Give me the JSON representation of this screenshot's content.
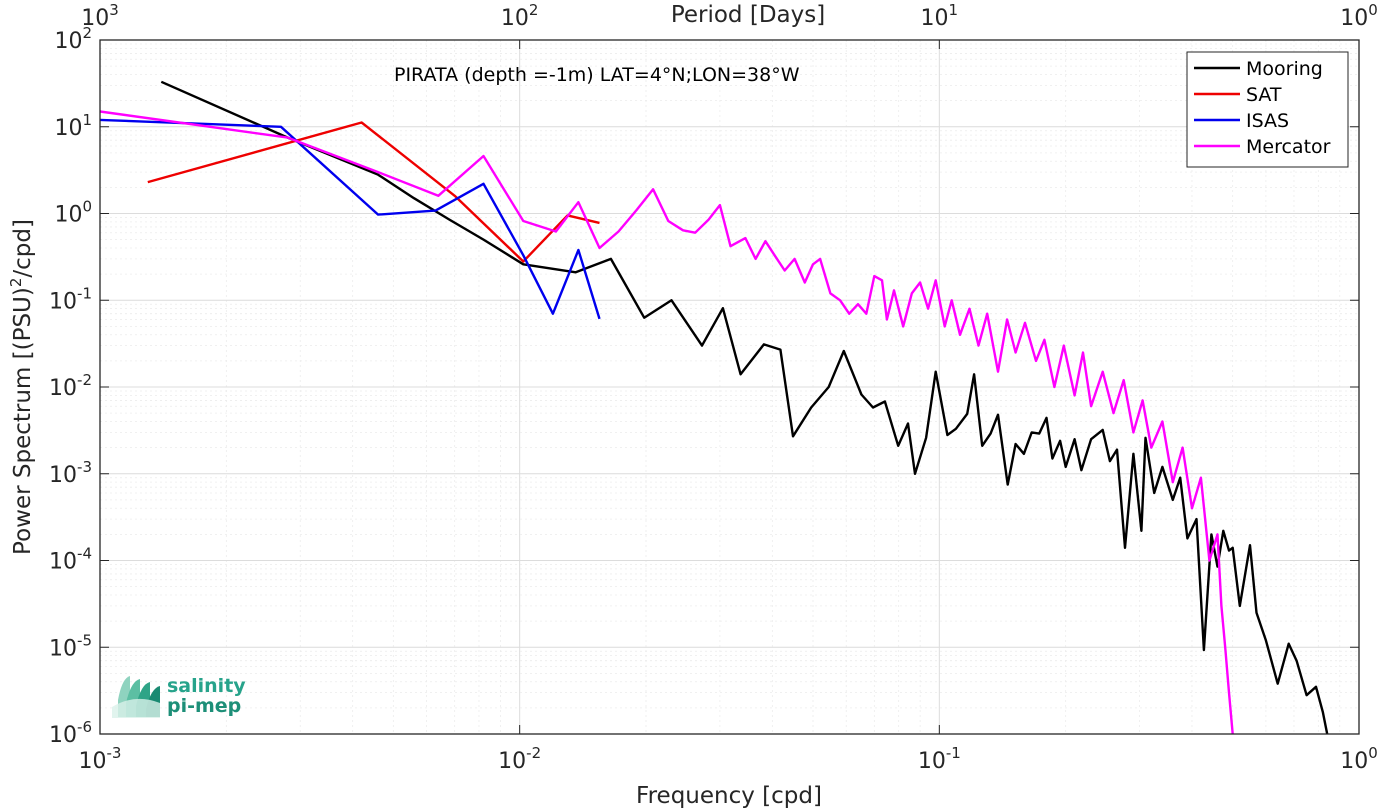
{
  "chart_data": {
    "type": "line",
    "title": "",
    "annotation": "PIRATA (depth =-1m) LAT=4°N;LON=38°W",
    "xlabel": "Frequency [cpd]",
    "ylabel": "Power Spectrum [(PSU)²/cpd]",
    "top_xlabel": "Period [Days]",
    "x_scale": "log",
    "y_scale": "log",
    "xlim": [
      0.001,
      1
    ],
    "ylim": [
      1e-06,
      100
    ],
    "grid": true,
    "legend_position": "top-right",
    "x_ticks": [
      "10^-3",
      "10^-2",
      "10^-1",
      "10^0"
    ],
    "top_ticks": [
      "10^3",
      "10^2",
      "10^1",
      "10^0"
    ],
    "y_ticks": [
      "10^-6",
      "10^-5",
      "10^-4",
      "10^-3",
      "10^-2",
      "10^-1",
      "10^0",
      "10^1",
      "10^2"
    ],
    "series": [
      {
        "name": "Mooring",
        "color": "#000000",
        "points": [
          [
            0.0014,
            33
          ],
          [
            0.0028,
            7.5
          ],
          [
            0.0046,
            2.8
          ],
          [
            0.0056,
            1.5
          ],
          [
            0.0068,
            0.85
          ],
          [
            0.0082,
            0.5
          ],
          [
            0.0102,
            0.26
          ],
          [
            0.0136,
            0.21
          ],
          [
            0.0165,
            0.3
          ],
          [
            0.0198,
            0.063
          ],
          [
            0.023,
            0.1
          ],
          [
            0.0272,
            0.03
          ],
          [
            0.0305,
            0.081
          ],
          [
            0.0336,
            0.014
          ],
          [
            0.0382,
            0.031
          ],
          [
            0.0418,
            0.027
          ],
          [
            0.0448,
            0.0027
          ],
          [
            0.0495,
            0.0058
          ],
          [
            0.0545,
            0.01
          ],
          [
            0.0592,
            0.026
          ],
          [
            0.0652,
            0.0082
          ],
          [
            0.0695,
            0.0058
          ],
          [
            0.0742,
            0.0068
          ],
          [
            0.0798,
            0.0021
          ],
          [
            0.0842,
            0.0038
          ],
          [
            0.0875,
            0.001
          ],
          [
            0.093,
            0.0026
          ],
          [
            0.098,
            0.015
          ],
          [
            0.1045,
            0.0028
          ],
          [
            0.1095,
            0.0033
          ],
          [
            0.1165,
            0.0049
          ],
          [
            0.121,
            0.014
          ],
          [
            0.1265,
            0.0021
          ],
          [
            0.1325,
            0.0029
          ],
          [
            0.138,
            0.0048
          ],
          [
            0.1455,
            0.00075
          ],
          [
            0.152,
            0.0022
          ],
          [
            0.159,
            0.0017
          ],
          [
            0.166,
            0.003
          ],
          [
            0.173,
            0.0029
          ],
          [
            0.18,
            0.0044
          ],
          [
            0.186,
            0.0015
          ],
          [
            0.194,
            0.0024
          ],
          [
            0.2,
            0.0012
          ],
          [
            0.21,
            0.0025
          ],
          [
            0.218,
            0.0011
          ],
          [
            0.23,
            0.0025
          ],
          [
            0.245,
            0.0032
          ],
          [
            0.255,
            0.0014
          ],
          [
            0.265,
            0.0019
          ],
          [
            0.277,
            0.00014
          ],
          [
            0.29,
            0.0017
          ],
          [
            0.303,
            0.00022
          ],
          [
            0.31,
            0.0026
          ],
          [
            0.325,
            0.0006
          ],
          [
            0.34,
            0.0012
          ],
          [
            0.36,
            0.0005
          ],
          [
            0.375,
            0.0009
          ],
          [
            0.39,
            0.00018
          ],
          [
            0.41,
            0.0003
          ],
          [
            0.427,
            9.3e-06
          ],
          [
            0.445,
            0.0002
          ],
          [
            0.46,
            8.5e-05
          ],
          [
            0.475,
            0.00022
          ],
          [
            0.49,
            0.00013
          ],
          [
            0.5,
            0.00014
          ],
          [
            0.52,
            3e-05
          ],
          [
            0.55,
            0.00015
          ],
          [
            0.57,
            2.5e-05
          ],
          [
            0.6,
            1.2e-05
          ],
          [
            0.64,
            3.8e-06
          ],
          [
            0.68,
            1.1e-05
          ],
          [
            0.71,
            7e-06
          ],
          [
            0.75,
            2.8e-06
          ],
          [
            0.79,
            3.5e-06
          ],
          [
            0.82,
            1.8e-06
          ],
          [
            0.84,
            1e-06
          ]
        ]
      },
      {
        "name": "SAT",
        "color": "#ee0000",
        "points": [
          [
            0.0013,
            2.3
          ],
          [
            0.0042,
            11.2
          ],
          [
            0.007,
            1.6
          ],
          [
            0.0102,
            0.28
          ],
          [
            0.013,
            0.95
          ],
          [
            0.0155,
            0.78
          ]
        ]
      },
      {
        "name": "ISAS",
        "color": "#0000ee",
        "points": [
          [
            0.001,
            12
          ],
          [
            0.0027,
            10
          ],
          [
            0.0046,
            0.97
          ],
          [
            0.0063,
            1.08
          ],
          [
            0.0082,
            2.2
          ],
          [
            0.0102,
            0.33
          ],
          [
            0.012,
            0.07
          ],
          [
            0.0138,
            0.38
          ],
          [
            0.0155,
            0.061
          ]
        ]
      },
      {
        "name": "Mercator",
        "color": "#ff00ff",
        "points": [
          [
            0.001,
            15
          ],
          [
            0.0028,
            7.5
          ],
          [
            0.0046,
            3
          ],
          [
            0.0064,
            1.6
          ],
          [
            0.0082,
            4.6
          ],
          [
            0.0102,
            0.82
          ],
          [
            0.0122,
            0.62
          ],
          [
            0.0138,
            1.35
          ],
          [
            0.0155,
            0.4
          ],
          [
            0.0172,
            0.62
          ],
          [
            0.019,
            1.1
          ],
          [
            0.0208,
            1.9
          ],
          [
            0.0226,
            0.82
          ],
          [
            0.0245,
            0.64
          ],
          [
            0.0262,
            0.6
          ],
          [
            0.0282,
            0.85
          ],
          [
            0.03,
            1.25
          ],
          [
            0.0318,
            0.42
          ],
          [
            0.0345,
            0.52
          ],
          [
            0.0365,
            0.3
          ],
          [
            0.0385,
            0.48
          ],
          [
            0.0405,
            0.33
          ],
          [
            0.0428,
            0.22
          ],
          [
            0.0452,
            0.3
          ],
          [
            0.0478,
            0.16
          ],
          [
            0.05,
            0.26
          ],
          [
            0.052,
            0.3
          ],
          [
            0.055,
            0.12
          ],
          [
            0.058,
            0.1
          ],
          [
            0.061,
            0.07
          ],
          [
            0.064,
            0.09
          ],
          [
            0.067,
            0.07
          ],
          [
            0.07,
            0.19
          ],
          [
            0.073,
            0.17
          ],
          [
            0.075,
            0.06
          ],
          [
            0.078,
            0.13
          ],
          [
            0.082,
            0.05
          ],
          [
            0.086,
            0.12
          ],
          [
            0.09,
            0.16
          ],
          [
            0.094,
            0.08
          ],
          [
            0.098,
            0.17
          ],
          [
            0.103,
            0.05
          ],
          [
            0.107,
            0.1
          ],
          [
            0.112,
            0.04
          ],
          [
            0.118,
            0.08
          ],
          [
            0.124,
            0.03
          ],
          [
            0.13,
            0.07
          ],
          [
            0.138,
            0.015
          ],
          [
            0.145,
            0.06
          ],
          [
            0.152,
            0.025
          ],
          [
            0.16,
            0.055
          ],
          [
            0.17,
            0.02
          ],
          [
            0.178,
            0.035
          ],
          [
            0.188,
            0.01
          ],
          [
            0.198,
            0.03
          ],
          [
            0.21,
            0.008
          ],
          [
            0.22,
            0.025
          ],
          [
            0.23,
            0.006
          ],
          [
            0.245,
            0.015
          ],
          [
            0.26,
            0.005
          ],
          [
            0.275,
            0.012
          ],
          [
            0.29,
            0.003
          ],
          [
            0.305,
            0.007
          ],
          [
            0.32,
            0.002
          ],
          [
            0.34,
            0.004
          ],
          [
            0.36,
            0.0008
          ],
          [
            0.38,
            0.002
          ],
          [
            0.4,
            0.0004
          ],
          [
            0.42,
            0.0009
          ],
          [
            0.44,
            0.0001
          ],
          [
            0.46,
            0.0002
          ],
          [
            0.47,
            3e-05
          ],
          [
            0.48,
            1e-05
          ],
          [
            0.49,
            3e-06
          ],
          [
            0.5,
            1e-06
          ]
        ]
      }
    ]
  },
  "logo": {
    "line1": "salinity",
    "line2": "pi-mep"
  }
}
